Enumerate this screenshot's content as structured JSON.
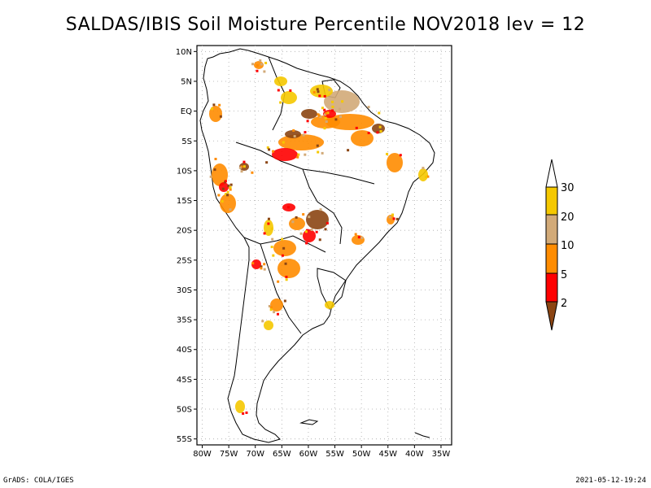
{
  "title": "SALDAS/IBIS Soil Moisture Percentile NOV2018 lev = 12",
  "footer_left": "GrADS: COLA/IGES",
  "footer_right": "2021-05-12-19:24",
  "map": {
    "lat_ticks": [
      "10N",
      "5N",
      "EQ",
      "5S",
      "10S",
      "15S",
      "20S",
      "25S",
      "30S",
      "35S",
      "40S",
      "45S",
      "50S",
      "55S"
    ],
    "lon_ticks": [
      "80W",
      "75W",
      "70W",
      "65W",
      "60W",
      "55W",
      "50W",
      "45W",
      "40W",
      "35W"
    ],
    "lat_range": [
      -56,
      11
    ],
    "lon_range": [
      -81,
      -33
    ],
    "grid": "dotted"
  },
  "colorbar": {
    "labels": [
      "30",
      "20",
      "10",
      "5",
      "2"
    ],
    "colors": {
      "above_30": "#ffffff",
      "20_30": "#f5c800",
      "10_20": "#d2aa78",
      "5_10": "#ff8c00",
      "2_5": "#ff0000",
      "below_2": "#8b4513"
    }
  }
}
